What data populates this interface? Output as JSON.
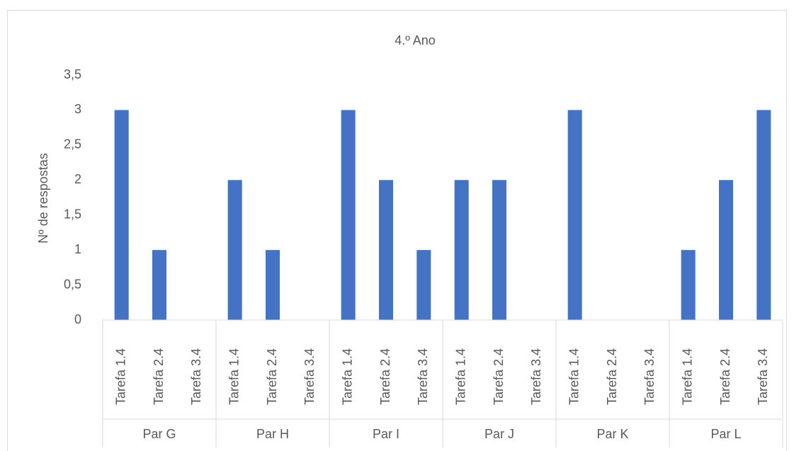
{
  "chart_data": {
    "type": "bar",
    "title": "4.º Ano",
    "y_label": "Nº de respostas",
    "color": "#4472c4",
    "groups": [
      {
        "label": "Par G",
        "categories": [
          "Tarefa 1.4",
          "Tarefa 2.4",
          "Tarefa 3.4"
        ],
        "values": [
          3,
          1,
          0
        ]
      },
      {
        "label": "Par H",
        "categories": [
          "Tarefa 1.4",
          "Tarefa 2.4",
          "Tarefa 3.4"
        ],
        "values": [
          2,
          1,
          0
        ]
      },
      {
        "label": "Par I",
        "categories": [
          "Tarefa 1.4",
          "Tarefa 2.4",
          "Tarefa 3.4"
        ],
        "values": [
          3,
          2,
          1
        ]
      },
      {
        "label": "Par J",
        "categories": [
          "Tarefa 1.4",
          "Tarefa 2.4",
          "Tarefa 3.4"
        ],
        "values": [
          2,
          2,
          0
        ]
      },
      {
        "label": "Par K",
        "categories": [
          "Tarefa 1.4",
          "Tarefa 2.4",
          "Tarefa 3.4"
        ],
        "values": [
          3,
          0,
          0
        ]
      },
      {
        "label": "Par L",
        "categories": [
          "Tarefa 1.4",
          "Tarefa 2.4",
          "Tarefa 3.4"
        ],
        "values": [
          1,
          2,
          3
        ]
      }
    ],
    "ylim": [
      0,
      3.5
    ],
    "yticks": [
      0,
      {
        "value": 0.5,
        "label": "0,5"
      },
      1,
      {
        "value": 1.5,
        "label": "1,5"
      },
      2,
      {
        "value": 2.5,
        "label": "2,5"
      },
      3,
      {
        "value": 3.5,
        "label": "3,5"
      }
    ],
    "grid": false
  }
}
